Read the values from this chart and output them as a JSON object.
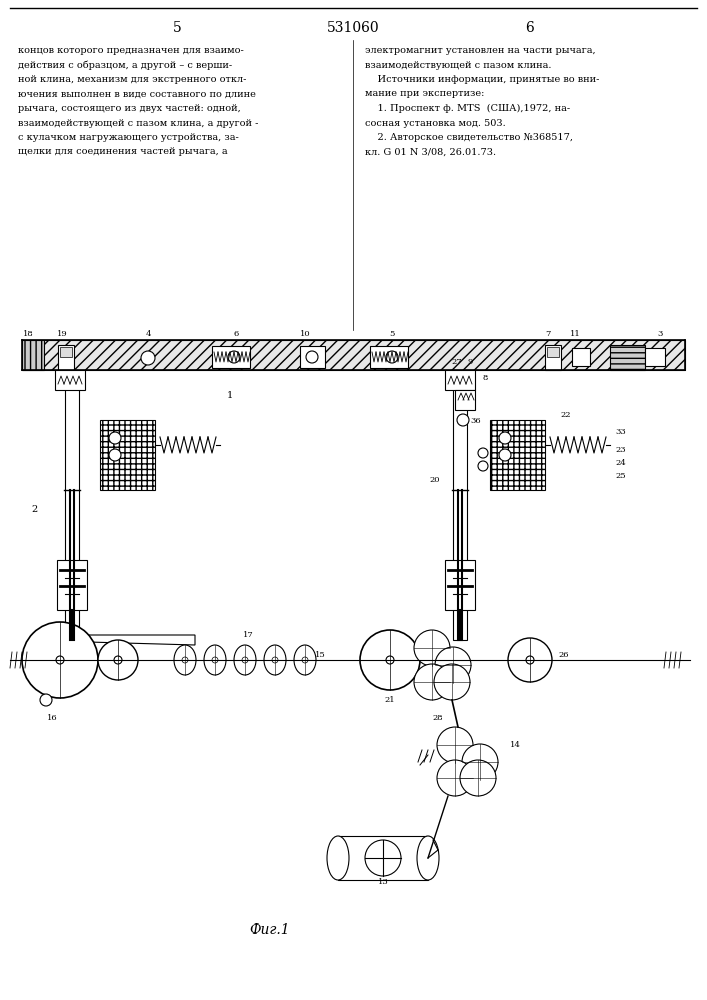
{
  "bg_color": "#ffffff",
  "line_color": "#000000",
  "page_width": 7.07,
  "page_height": 10.0,
  "fig_label": "Фиг.1",
  "text_top_header_5": "5",
  "text_top_header_531060": "531060",
  "text_top_header_6": "6",
  "left_body": "концов которого предназначен для взаимо-\nдействия с образцом, а другой – с верши-\nной клина, механизм для экстренного откл-\nючения выполнен в виде составного по длине\nрычага, состоящего из двух частей: одной,\nвзаимодействующей с пазом клина, а другой -\nс кулачком нагружающего устройства, за-\nщелки для соединения частей рычага, а",
  "right_body": "электромагнит установлен на части рычага,\nвзаимодействующей с пазом клина.\n    Источники информации, принятые во вни-\nмание при экспертизе:\n    1. Проспект ф. МТS  (США),1972, на-\nсосная установка мод. 503.\n    2. Авторское свидетельство №368517,\nкл. G 01 N 3/08, 26.01.73."
}
